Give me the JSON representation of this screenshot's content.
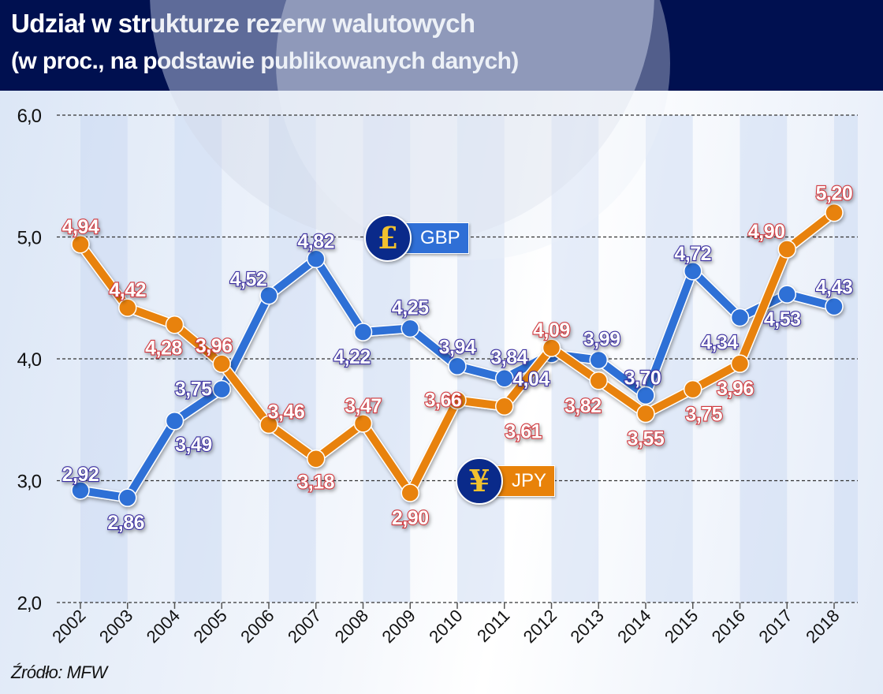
{
  "header": {
    "title": "Udział w strukturze rezerw walutowych",
    "subtitle": "(w proc., na podstawie publikowanych danych)"
  },
  "source": "Źródło: MFW",
  "legend": {
    "gbp": {
      "symbol": "£",
      "label": "GBP",
      "color": "#2f6fd6"
    },
    "jpy": {
      "symbol": "¥",
      "label": "JPY",
      "color": "#e8820a"
    }
  },
  "chart_data": {
    "type": "line",
    "title": "Udział w strukturze rezerw walutowych",
    "subtitle": "(w proc., na podstawie publikowanych danych)",
    "xlabel": "",
    "ylabel": "",
    "x": [
      "2002",
      "2003",
      "2004",
      "2005",
      "2006",
      "2007",
      "2008",
      "2009",
      "2010",
      "2011",
      "2012",
      "2013",
      "2014",
      "2015",
      "2016",
      "2017",
      "2018"
    ],
    "ylim": [
      2.0,
      6.0
    ],
    "yticks": [
      2.0,
      3.0,
      4.0,
      5.0,
      6.0
    ],
    "ytick_labels": [
      "2,0",
      "3,0",
      "4,0",
      "5,0",
      "6,0"
    ],
    "grid": "horizontal dashed",
    "series": [
      {
        "name": "GBP",
        "color": "#2f6fd6",
        "label_color": "#3a2fa0",
        "values": [
          2.92,
          2.86,
          3.49,
          3.75,
          4.52,
          4.82,
          4.22,
          4.25,
          3.94,
          3.84,
          4.04,
          3.99,
          3.7,
          4.72,
          4.34,
          4.53,
          4.43
        ],
        "labels": [
          "2,92",
          "2,86",
          "3,49",
          "3,75",
          "4,52",
          "4,82",
          "4,22",
          "4,25",
          "3,94",
          "3,84",
          "4,04",
          "3,99",
          "3,70",
          "4,72",
          "4,34",
          "4,53",
          "4,43"
        ]
      },
      {
        "name": "JPY",
        "color": "#e8820a",
        "label_color": "#d0383e",
        "values": [
          4.94,
          4.42,
          4.28,
          3.96,
          3.46,
          3.18,
          3.47,
          2.9,
          3.66,
          3.61,
          4.09,
          3.82,
          3.55,
          3.75,
          3.96,
          4.9,
          5.2
        ],
        "labels": [
          "4,94",
          "4,42",
          "4,28",
          "3,96",
          "3,46",
          "3,18",
          "3,47",
          "2,90",
          "3,66",
          "3,61",
          "4,09",
          "3,82",
          "3,55",
          "3,75",
          "3,96",
          "4,90",
          "5,20"
        ]
      }
    ],
    "legend": [
      {
        "name": "GBP",
        "placement": "upper-middle"
      },
      {
        "name": "JPY",
        "placement": "lower-middle"
      }
    ],
    "source": "Źródło: MFW"
  }
}
